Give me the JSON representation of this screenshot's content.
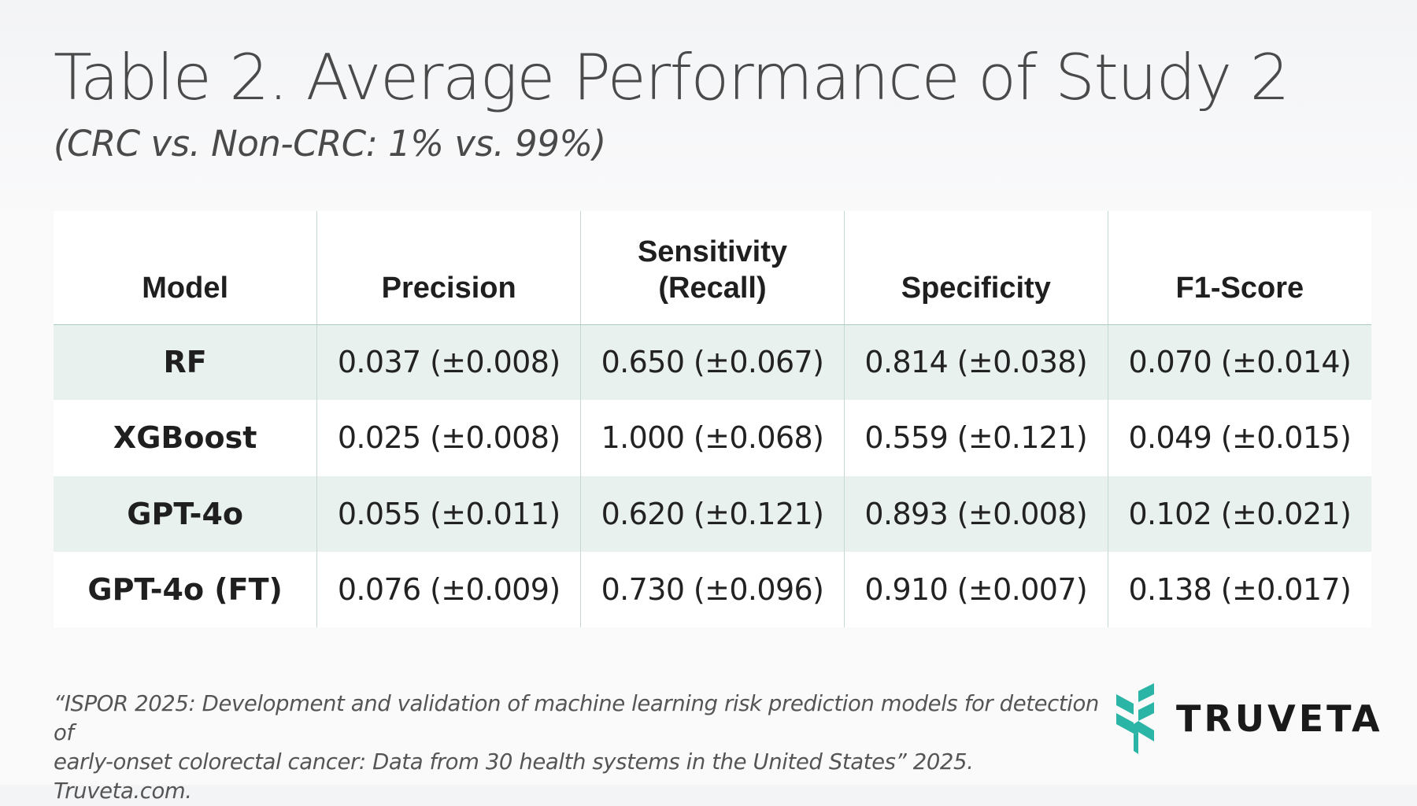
{
  "title": "Table 2. Average Performance of Study 2",
  "subtitle": "(CRC vs. Non-CRC: 1% vs. 99%)",
  "table": {
    "headers": {
      "model": "Model",
      "precision": "Precision",
      "sensitivity_line1": "Sensitivity",
      "sensitivity_line2": "(Recall)",
      "specificity": "Specificity",
      "f1": "F1-Score"
    },
    "rows": [
      {
        "model": "RF",
        "precision": "0.037 (±0.008)",
        "sensitivity": "0.650 (±0.067)",
        "specificity": "0.814 (±0.038)",
        "f1": "0.070 (±0.014)"
      },
      {
        "model": "XGBoost",
        "precision": "0.025 (±0.008)",
        "sensitivity": "1.000 (±0.068)",
        "specificity": "0.559 (±0.121)",
        "f1": "0.049 (±0.015)"
      },
      {
        "model": "GPT-4o",
        "precision": "0.055 (±0.011)",
        "sensitivity": "0.620 (±0.121)",
        "specificity": "0.893 (±0.008)",
        "f1": "0.102 (±0.021)"
      },
      {
        "model": "GPT-4o (FT)",
        "precision": "0.076 (±0.009)",
        "sensitivity": "0.730 (±0.096)",
        "specificity": "0.910 (±0.007)",
        "f1": "0.138 (±0.017)"
      }
    ]
  },
  "citation": {
    "line1": "“ISPOR 2025: Development and validation of machine learning risk prediction models for detection of",
    "line2": "early-onset colorectal cancer: Data from 30 health systems in the United States” 2025. Truveta.com."
  },
  "logo": {
    "text": "TRUVETA",
    "icon": "truveta-leaf-icon",
    "color": "#2bb5a6"
  }
}
